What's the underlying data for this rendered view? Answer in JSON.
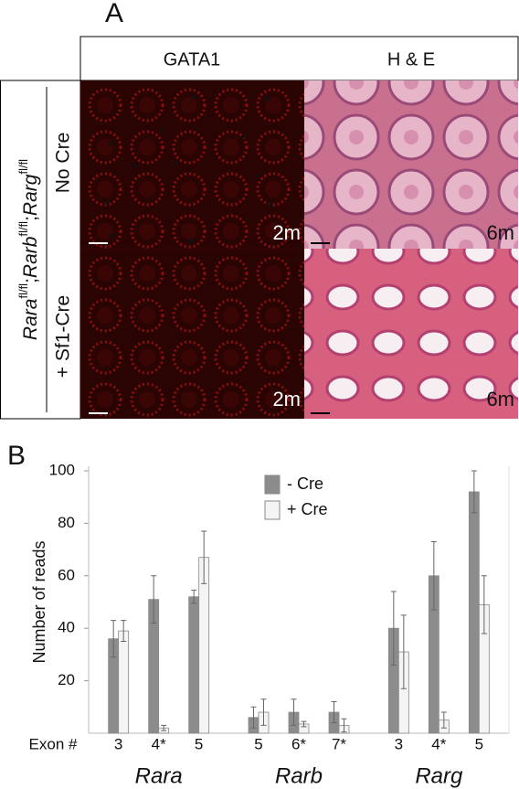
{
  "panel_a": {
    "label": "A",
    "columns": [
      "GATA1",
      "H & E"
    ],
    "row_label": {
      "genes": [
        "Rara",
        "Rarb",
        "Rarg"
      ],
      "sup": "fl/fl",
      "sep": ";"
    },
    "rows": [
      "No Cre",
      "+ Sf1-Cre"
    ],
    "ages": [
      "2m",
      "6m"
    ],
    "asterisk": "*"
  },
  "chart_data": {
    "type": "bar",
    "panel_label": "B",
    "y_label": "Number of reads",
    "x_label": "Exon #",
    "categories": [
      "3",
      "4*",
      "5",
      "5",
      "6*",
      "7*",
      "3",
      "4*",
      "5"
    ],
    "groups": [
      "Rara",
      "Rarb",
      "Rarg"
    ],
    "series": [
      {
        "name": "- Cre",
        "color": "#8c8c8c",
        "values": [
          36,
          51,
          52,
          6,
          8,
          8,
          40,
          60,
          92
        ],
        "errors": [
          7,
          9,
          2.5,
          4,
          5,
          4,
          14,
          13,
          8
        ]
      },
      {
        "name": "+ Cre",
        "color": "#f4f4f4",
        "values": [
          39,
          2,
          67,
          8,
          3.5,
          3,
          31,
          5,
          49
        ],
        "errors": [
          4,
          1,
          10,
          5,
          1,
          2.5,
          14,
          3,
          11
        ]
      }
    ],
    "ylim": [
      0,
      100
    ],
    "yticks": [
      20,
      40,
      60,
      80,
      100
    ]
  }
}
